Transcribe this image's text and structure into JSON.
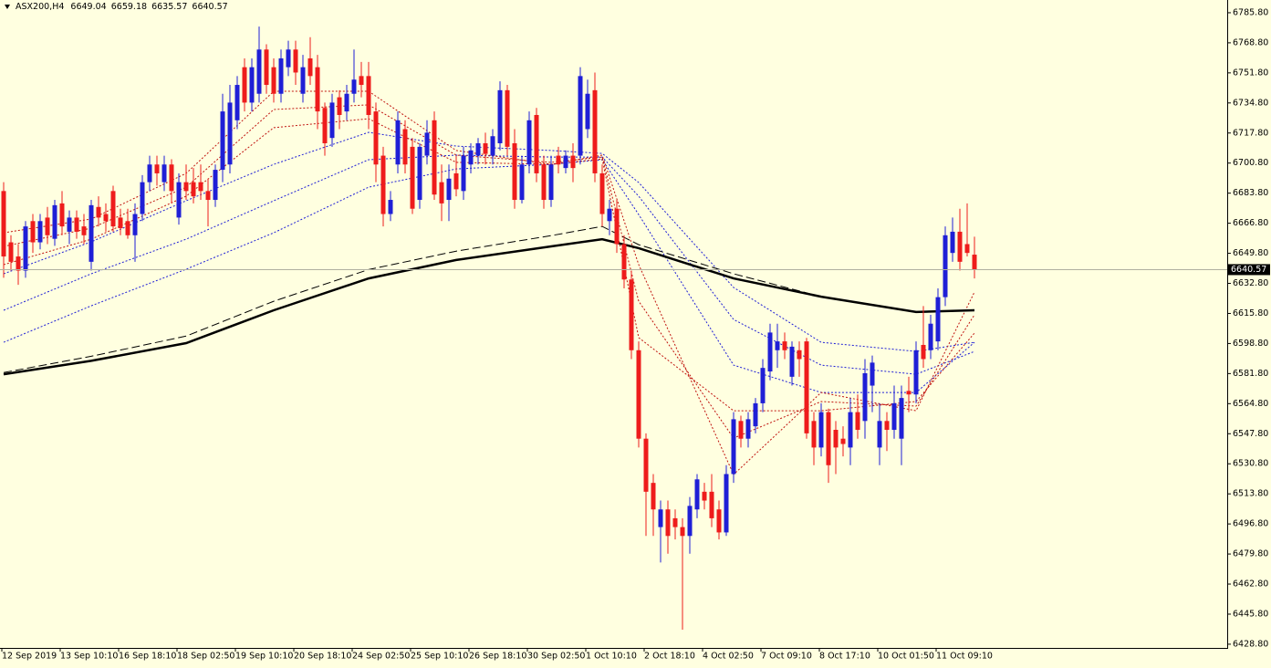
{
  "chart_data": {
    "type": "candlestick",
    "symbol": "ASX200,H4",
    "ylim": [
      6426.7,
      6793.0
    ],
    "yticks": [
      {
        "value": 6428.8,
        "label": "6428.80"
      },
      {
        "value": 6445.8,
        "label": "6445.80"
      },
      {
        "value": 6462.8,
        "label": "6462.80"
      },
      {
        "value": 6479.8,
        "label": "6479.80"
      },
      {
        "value": 6496.8,
        "label": "6496.80"
      },
      {
        "value": 6513.8,
        "label": "6513.80"
      },
      {
        "value": 6530.8,
        "label": "6530.80"
      },
      {
        "value": 6547.8,
        "label": "6547.80"
      },
      {
        "value": 6564.8,
        "label": "6564.80"
      },
      {
        "value": 6581.8,
        "label": "6581.80"
      },
      {
        "value": 6598.8,
        "label": "6598.80"
      },
      {
        "value": 6615.8,
        "label": "6615.80"
      },
      {
        "value": 6632.8,
        "label": "6632.80"
      },
      {
        "value": 6649.8,
        "label": "6649.80"
      },
      {
        "value": 6666.8,
        "label": "6666.80"
      },
      {
        "value": 6683.8,
        "label": "6683.80"
      },
      {
        "value": 6700.8,
        "label": "6700.80"
      },
      {
        "value": 6717.8,
        "label": "6717.80"
      },
      {
        "value": 6734.8,
        "label": "6734.80"
      },
      {
        "value": 6751.8,
        "label": "6751.80"
      },
      {
        "value": 6768.8,
        "label": "6768.80"
      },
      {
        "value": 6785.8,
        "label": "6785.80"
      }
    ],
    "xticks": [
      {
        "value": 0,
        "label": "12 Sep 2019"
      },
      {
        "value": 8,
        "label": "13 Sep 10:10"
      },
      {
        "value": 16,
        "label": "16 Sep 18:10"
      },
      {
        "value": 24,
        "label": "18 Sep 02:50"
      },
      {
        "value": 32,
        "label": "19 Sep 10:10"
      },
      {
        "value": 40,
        "label": "20 Sep 18:10"
      },
      {
        "value": 48,
        "label": "24 Sep 02:50"
      },
      {
        "value": 56,
        "label": "25 Sep 10:10"
      },
      {
        "value": 64,
        "label": "26 Sep 18:10"
      },
      {
        "value": 72,
        "label": "30 Sep 02:50"
      },
      {
        "value": 80,
        "label": "1 Oct 10:10"
      },
      {
        "value": 88,
        "label": "2 Oct 18:10"
      },
      {
        "value": 96,
        "label": "4 Oct 02:50"
      },
      {
        "value": 104,
        "label": "7 Oct 09:10"
      },
      {
        "value": 112,
        "label": "8 Oct 17:10"
      },
      {
        "value": 120,
        "label": "10 Oct 01:50"
      },
      {
        "value": 128,
        "label": "11 Oct 09:10"
      }
    ],
    "candles": {
      "up_color": "#1f1fd6",
      "down_color": "#ee1c1c",
      "open": [
        6685,
        6656,
        6648,
        6640,
        6668,
        6656,
        6670,
        6658,
        6678,
        6662,
        6670,
        6665,
        6645,
        6676,
        6672,
        6685,
        6670,
        6668,
        6660,
        6672,
        6690,
        6700,
        6690,
        6700,
        6670,
        6690,
        6690,
        6690,
        6685,
        6680,
        6697,
        6700,
        6725,
        6755,
        6735,
        6740,
        6765,
        6755,
        6740,
        6755,
        6765,
        6740,
        6760,
        6755,
        6732,
        6715,
        6738,
        6730,
        6740,
        6750,
        6750,
        6730,
        6705,
        6672,
        6700,
        6720,
        6710,
        6680,
        6705,
        6725,
        6690,
        6680,
        6695,
        6685,
        6700,
        6705,
        6712,
        6705,
        6712,
        6742,
        6712,
        6680,
        6700,
        6728,
        6700,
        6680,
        6705,
        6698,
        6705,
        6705,
        6720,
        6742,
        6695,
        6668,
        6675,
        6655,
        6635,
        6595,
        6545,
        6520,
        6495,
        6505,
        6500,
        6495,
        6490,
        6505,
        6515,
        6515,
        6505,
        6492,
        6525,
        6555,
        6545,
        6552,
        6565,
        6583,
        6595,
        6600,
        6580,
        6595,
        6600,
        6555,
        6540,
        6560,
        6550,
        6545,
        6540,
        6560,
        6555,
        6575,
        6540,
        6555,
        6550,
        6545,
        6572,
        6570,
        6598,
        6595,
        6600,
        6625,
        6650,
        6662,
        6655,
        6649.04
      ],
      "high": [
        6690,
        6660,
        6655,
        6668,
        6672,
        6672,
        6676,
        6680,
        6685,
        6674,
        6674,
        6672,
        6680,
        6682,
        6678,
        6688,
        6675,
        6675,
        6678,
        6694,
        6705,
        6705,
        6705,
        6703,
        6695,
        6700,
        6698,
        6700,
        6692,
        6700,
        6740,
        6745,
        6750,
        6760,
        6760,
        6778,
        6768,
        6760,
        6765,
        6770,
        6770,
        6762,
        6772,
        6762,
        6735,
        6740,
        6742,
        6745,
        6765,
        6758,
        6758,
        6735,
        6710,
        6685,
        6730,
        6725,
        6715,
        6712,
        6725,
        6730,
        6700,
        6700,
        6705,
        6710,
        6712,
        6715,
        6718,
        6720,
        6747,
        6745,
        6720,
        6705,
        6730,
        6732,
        6705,
        6705,
        6710,
        6708,
        6712,
        6755,
        6748,
        6752,
        6700,
        6680,
        6680,
        6660,
        6640,
        6600,
        6548,
        6525,
        6510,
        6510,
        6505,
        6500,
        6512,
        6525,
        6520,
        6525,
        6510,
        6530,
        6560,
        6558,
        6560,
        6568,
        6590,
        6610,
        6610,
        6605,
        6600,
        6600,
        6602,
        6560,
        6565,
        6562,
        6555,
        6552,
        6568,
        6570,
        6590,
        6592,
        6565,
        6560,
        6575,
        6575,
        6580,
        6600,
        6620,
        6615,
        6630,
        6665,
        6670,
        6675,
        6678,
        6659.18
      ],
      "low": [
        6636,
        6640,
        6632,
        6636,
        6650,
        6652,
        6655,
        6654,
        6660,
        6655,
        6658,
        6655,
        6640,
        6665,
        6662,
        6662,
        6660,
        6658,
        6645,
        6668,
        6685,
        6688,
        6685,
        6678,
        6666,
        6680,
        6678,
        6680,
        6665,
        6676,
        6690,
        6695,
        6720,
        6730,
        6730,
        6735,
        6740,
        6735,
        6735,
        6750,
        6745,
        6735,
        6745,
        6720,
        6705,
        6710,
        6720,
        6725,
        6735,
        6738,
        6720,
        6690,
        6665,
        6668,
        6695,
        6695,
        6672,
        6675,
        6700,
        6680,
        6668,
        6668,
        6682,
        6680,
        6695,
        6700,
        6700,
        6700,
        6708,
        6705,
        6675,
        6678,
        6695,
        6690,
        6675,
        6676,
        6695,
        6695,
        6690,
        6700,
        6715,
        6690,
        6665,
        6660,
        6650,
        6630,
        6590,
        6540,
        6490,
        6490,
        6475,
        6480,
        6488,
        6437,
        6480,
        6500,
        6505,
        6495,
        6488,
        6490,
        6520,
        6540,
        6540,
        6548,
        6560,
        6578,
        6585,
        6590,
        6575,
        6580,
        6545,
        6530,
        6535,
        6520,
        6525,
        6535,
        6530,
        6545,
        6545,
        6560,
        6530,
        6538,
        6545,
        6530,
        6560,
        6565,
        6585,
        6590,
        6595,
        6620,
        6645,
        6640,
        6648,
        6635.57
      ],
      "close": [
        6648,
        6645,
        6640,
        6665,
        6656,
        6668,
        6660,
        6677,
        6665,
        6670,
        6662,
        6660,
        6677,
        6670,
        6668,
        6665,
        6664,
        6660,
        6672,
        6690,
        6700,
        6695,
        6700,
        6685,
        6690,
        6685,
        6682,
        6685,
        6680,
        6697,
        6730,
        6735,
        6745,
        6735,
        6755,
        6765,
        6745,
        6740,
        6760,
        6765,
        6752,
        6755,
        6750,
        6730,
        6712,
        6735,
        6728,
        6740,
        6748,
        6745,
        6728,
        6700,
        6672,
        6680,
        6725,
        6700,
        6675,
        6710,
        6718,
        6683,
        6678,
        6692,
        6686,
        6705,
        6708,
        6712,
        6706,
        6716,
        6742,
        6710,
        6680,
        6700,
        6725,
        6695,
        6680,
        6700,
        6700,
        6705,
        6698,
        6750,
        6740,
        6695,
        6672,
        6675,
        6655,
        6635,
        6595,
        6545,
        6515,
        6505,
        6505,
        6490,
        6495,
        6490,
        6507,
        6522,
        6510,
        6500,
        6492,
        6525,
        6556,
        6545,
        6556,
        6565,
        6585,
        6605,
        6600,
        6595,
        6597,
        6590,
        6548,
        6540,
        6560,
        6530,
        6540,
        6542,
        6560,
        6550,
        6582,
        6588,
        6555,
        6550,
        6565,
        6568,
        6570,
        6595,
        6590,
        6610,
        6625,
        6660,
        6662,
        6645,
        6650,
        6640.57
      ]
    },
    "lines": [
      {
        "color": "#1f1fd6",
        "style": "dotted",
        "width": 1,
        "x": [
          0,
          12,
          25,
          37,
          50,
          62,
          75,
          82,
          87,
          100,
          112,
          125,
          133
        ],
        "values": [
          6638.2,
          6656.3,
          6679.5,
          6700.1,
          6718.2,
          6710.4,
          6707.9,
          6706.3,
          6689.8,
          6630.5,
          6599.5,
          6594.3,
          6599.5
        ]
      },
      {
        "color": "#1f1fd6",
        "style": "dotted",
        "width": 1,
        "x": [
          0,
          12,
          25,
          37,
          50,
          62,
          75,
          82,
          87,
          100,
          112,
          125,
          133
        ],
        "values": [
          6617.6,
          6638.2,
          6657.8,
          6679.5,
          6702.7,
          6705.3,
          6704.2,
          6704.2,
          6682.1,
          6612.4,
          6586.6,
          6581.4,
          6594.3
        ]
      },
      {
        "color": "#1f1fd6",
        "style": "dotted",
        "width": 1,
        "x": [
          0,
          12,
          25,
          37,
          50,
          62,
          75,
          82,
          87,
          100,
          112,
          125,
          133
        ],
        "values": [
          6599.5,
          6620.1,
          6640.8,
          6661.4,
          6687.2,
          6697.5,
          6700.1,
          6702.7,
          6671.7,
          6586.6,
          6571.1,
          6571.1,
          6599.5
        ]
      },
      {
        "color": "#c0140f",
        "style": "dotted",
        "width": 1,
        "x": [
          0,
          12,
          25,
          37,
          50,
          62,
          75,
          82,
          87,
          100,
          112,
          125,
          133
        ],
        "values": [
          6661.4,
          6669.2,
          6695,
          6741.4,
          6741.4,
          6707.9,
          6700.1,
          6705.3,
          6643.4,
          6524.7,
          6571.1,
          6560.8,
          6627.9
        ]
      },
      {
        "color": "#c0140f",
        "style": "dotted",
        "width": 1,
        "x": [
          0,
          12,
          25,
          37,
          50,
          62,
          75,
          82,
          87,
          100,
          112,
          125,
          133
        ],
        "values": [
          6653.7,
          6664,
          6687.2,
          6731.1,
          6733.7,
          6705.3,
          6701.2,
          6704.2,
          6622.7,
          6545.3,
          6566,
          6563.4,
          6615
        ]
      },
      {
        "color": "#c0140f",
        "style": "dotted",
        "width": 1,
        "x": [
          0,
          12,
          25,
          37,
          50,
          62,
          75,
          82,
          87,
          100,
          112,
          125,
          133
        ],
        "values": [
          6643.4,
          6657.8,
          6682.1,
          6720.8,
          6725.9,
          6701.2,
          6700.1,
          6703.2,
          6602.1,
          6560.8,
          6560.8,
          6566,
          6604.7
        ]
      },
      {
        "color": "#000000",
        "style": "dashed",
        "width": 1,
        "x": [
          0,
          12,
          25,
          37,
          50,
          62,
          75,
          82,
          87,
          100,
          112,
          125,
          133
        ],
        "values": [
          6582.4,
          6591.6,
          6603,
          6622.7,
          6640.6,
          6651,
          6659.8,
          6665,
          6654.7,
          6638.2,
          6625.3,
          6616.6,
          6617.6
        ]
      },
      {
        "color": "#000000",
        "style": "solid",
        "width": 2.5,
        "x": [
          0,
          12,
          25,
          37,
          50,
          62,
          75,
          82,
          87,
          100,
          112,
          125,
          133
        ],
        "values": [
          6581.4,
          6589,
          6599,
          6617.6,
          6635.6,
          6646,
          6653.7,
          6657.8,
          6652.7,
          6635.6,
          6625.3,
          6616.6,
          6617.6
        ]
      }
    ]
  }
}
